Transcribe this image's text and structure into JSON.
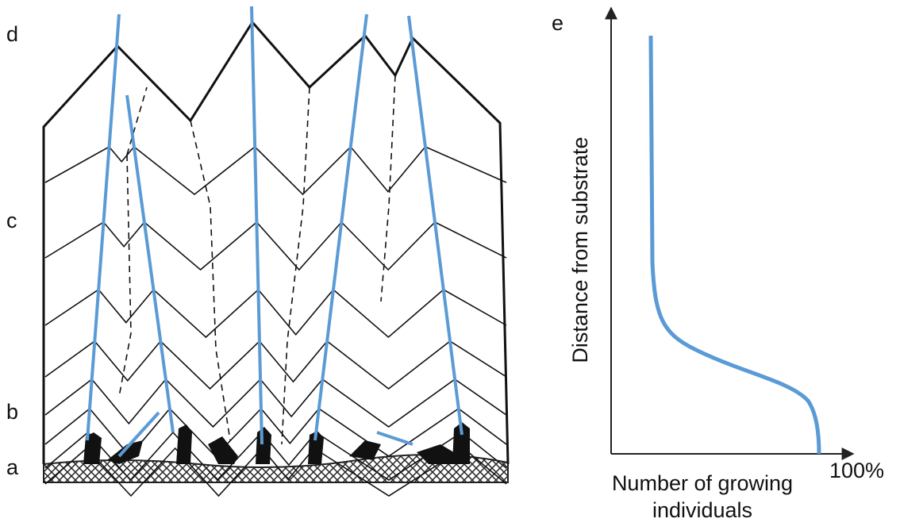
{
  "panel_labels": [
    "d",
    "c",
    "b",
    "a",
    "e"
  ],
  "axis": {
    "y_label": "Distance from substrate",
    "x_label_lines": [
      "Number of growing",
      "individuals"
    ],
    "x_end": "100%"
  }
}
